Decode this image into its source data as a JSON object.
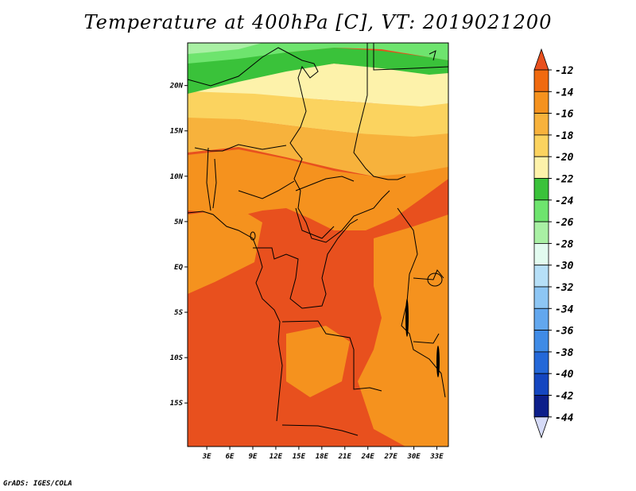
{
  "title": "Temperature at 400hPa [C], VT: 2019021200",
  "credit": "GrADS: IGES/COLA",
  "map": {
    "lat_ticks": [
      {
        "label": "20N",
        "lat": 20
      },
      {
        "label": "15N",
        "lat": 15
      },
      {
        "label": "10N",
        "lat": 10
      },
      {
        "label": "5N",
        "lat": 5
      },
      {
        "label": "EQ",
        "lat": 0
      },
      {
        "label": "5S",
        "lat": -5
      },
      {
        "label": "10S",
        "lat": -10
      },
      {
        "label": "15S",
        "lat": -15
      }
    ],
    "lon_ticks": [
      {
        "label": "3E",
        "lon": 3
      },
      {
        "label": "6E",
        "lon": 6
      },
      {
        "label": "9E",
        "lon": 9
      },
      {
        "label": "12E",
        "lon": 12
      },
      {
        "label": "15E",
        "lon": 15
      },
      {
        "label": "18E",
        "lon": 18
      },
      {
        "label": "21E",
        "lon": 21
      },
      {
        "label": "24E",
        "lon": 24
      },
      {
        "label": "27E",
        "lon": 27
      },
      {
        "label": "30E",
        "lon": 30
      },
      {
        "label": "33E",
        "lon": 33
      }
    ]
  },
  "colorbar": {
    "labels": [
      "-12",
      "-14",
      "-16",
      "-18",
      "-20",
      "-22",
      "-24",
      "-26",
      "-28",
      "-30",
      "-32",
      "-34",
      "-36",
      "-38",
      "-40",
      "-42",
      "-44"
    ],
    "colors": [
      "#e8501e",
      "#f06a0f",
      "#f5921e",
      "#f7b23c",
      "#fbd35f",
      "#fdf2aa",
      "#3ac23a",
      "#6ee46e",
      "#a9f0a4",
      "#e2fbef",
      "#b6dff7",
      "#8dc6f4",
      "#62a7ee",
      "#3f8be6",
      "#2468d8",
      "#1446c0",
      "#0c1e8a",
      "#d6dbf8"
    ]
  }
}
